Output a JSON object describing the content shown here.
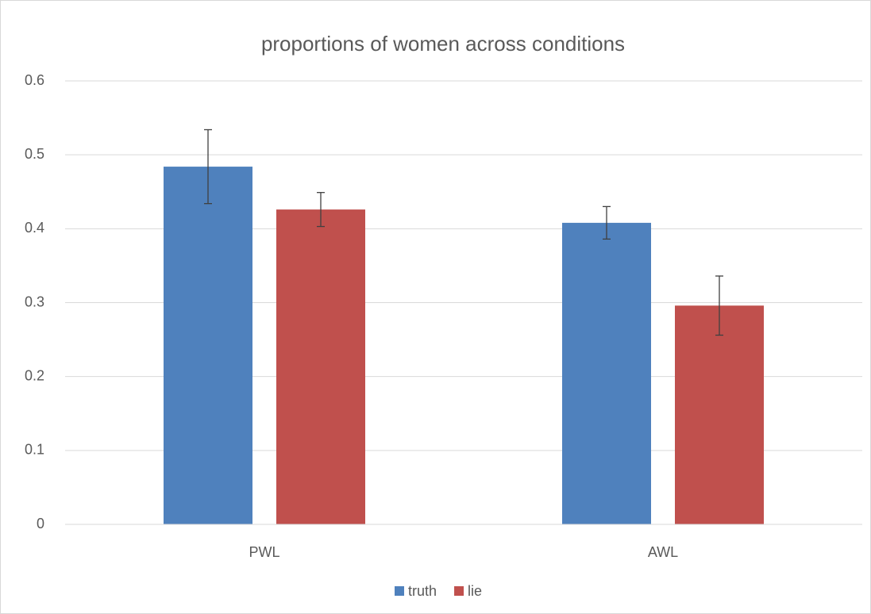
{
  "chart_data": {
    "type": "bar",
    "title": "proportions of women across conditions",
    "categories": [
      "PWL",
      "AWL"
    ],
    "series": [
      {
        "name": "truth",
        "color": "#4f81bd",
        "values": [
          0.484,
          0.408
        ],
        "errors": [
          0.05,
          0.022
        ]
      },
      {
        "name": "lie",
        "color": "#c0504d",
        "values": [
          0.426,
          0.296
        ],
        "errors": [
          0.023,
          0.04
        ]
      }
    ],
    "ylim": [
      0,
      0.6
    ],
    "yticks": [
      0,
      0.1,
      0.2,
      0.3,
      0.4,
      0.5,
      0.6
    ],
    "grid": true,
    "legend": "bottom"
  }
}
